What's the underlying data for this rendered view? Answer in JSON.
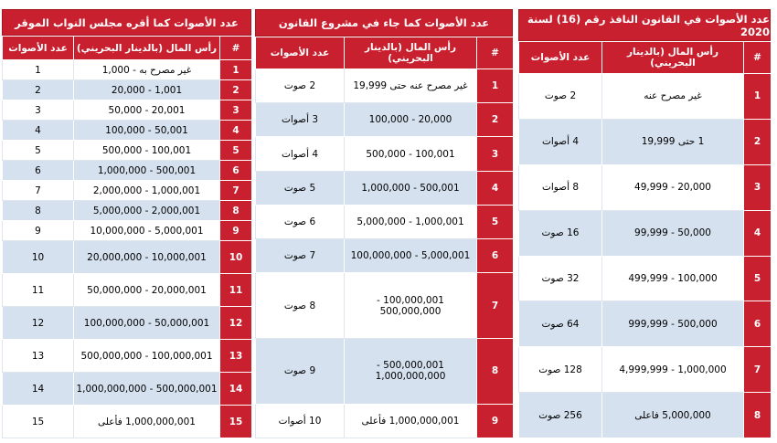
{
  "tables": [
    {
      "title": "عدد الأصوات في  القانون النافذ رقم (16) لسنة 2020",
      "headers": [
        "#",
        "رأس المال (بالدينار البحريني)",
        "عدد الأصوات"
      ],
      "rows": [
        [
          1,
          "غير مصرح عنه",
          "2 صوت"
        ],
        [
          2,
          "1 حتى 19,999",
          "4 أصوات"
        ],
        [
          3,
          "20,000 - 49,999",
          "8 أصوات"
        ],
        [
          4,
          "50,000 - 99,999",
          "16 صوت"
        ],
        [
          5,
          "100,000 - 499,999",
          "32 صوت"
        ],
        [
          6,
          "500,000 - 999,999",
          "64 صوت"
        ],
        [
          7,
          "1,000,000 - 4,999,999",
          "128 صوت"
        ],
        [
          8,
          "5,000,000 فاعلى",
          "256 صوت"
        ]
      ]
    },
    {
      "title": "عدد الأصوات كما جاء في مشروع القانون",
      "headers": [
        "#",
        "رأس المال (بالدينار البحريني)",
        "عدد الأصوات"
      ],
      "rows": [
        [
          1,
          "غير مصرح عنه حتى 19,999",
          "2 صوت"
        ],
        [
          2,
          "20,000 - 100,000",
          "3 أصوات"
        ],
        [
          3,
          "100,001 - 500,000",
          "4 أصوات"
        ],
        [
          4,
          "500,001 - 1,000,000",
          "5 صوت"
        ],
        [
          5,
          "1,000,001 - 5,000,000",
          "6 صوت"
        ],
        [
          6,
          "5,000,001 - 100,000,000",
          "7 صوت"
        ],
        [
          7,
          "100,000,001 - 500,000,000",
          "8 صوت"
        ],
        [
          8,
          "500,000,001 - 1,000,000,000",
          "9 صوت"
        ],
        [
          9,
          "1,000,000,001 فأعلى",
          "10 أصوات"
        ]
      ]
    },
    {
      "title": "عدد الأصوات كما أقره مجلس النواب الموقر",
      "headers": [
        "#",
        "رأس المال (بالدينار البحريني)",
        "عدد الأصوات"
      ],
      "rows": [
        [
          1,
          "غير مصرح به - 1,000",
          1
        ],
        [
          2,
          "1,001 - 20,000",
          2
        ],
        [
          3,
          "20,001 - 50,000",
          3
        ],
        [
          4,
          "50,001 - 100,000",
          4
        ],
        [
          5,
          "100,001 - 500,000",
          5
        ],
        [
          6,
          "500,001 - 1,000,000",
          6
        ],
        [
          7,
          "1,000,001 - 2,000,000",
          7
        ],
        [
          8,
          "2,000,001 - 5,000,000",
          8
        ],
        [
          9,
          "5,000,001 - 10,000,000",
          9
        ],
        [
          10,
          "10,000,001 - 20,000,000",
          10
        ],
        [
          11,
          "20,000,001 - 50,000,000",
          11
        ],
        [
          12,
          "50,000,001 - 100,000,000",
          12
        ],
        [
          13,
          "100,000,001 - 500,000,000",
          13
        ],
        [
          14,
          "500,000,001 - 1,000,000,000",
          14
        ],
        [
          15,
          "1,000,000,001 فأعلى",
          15
        ]
      ]
    }
  ]
}
